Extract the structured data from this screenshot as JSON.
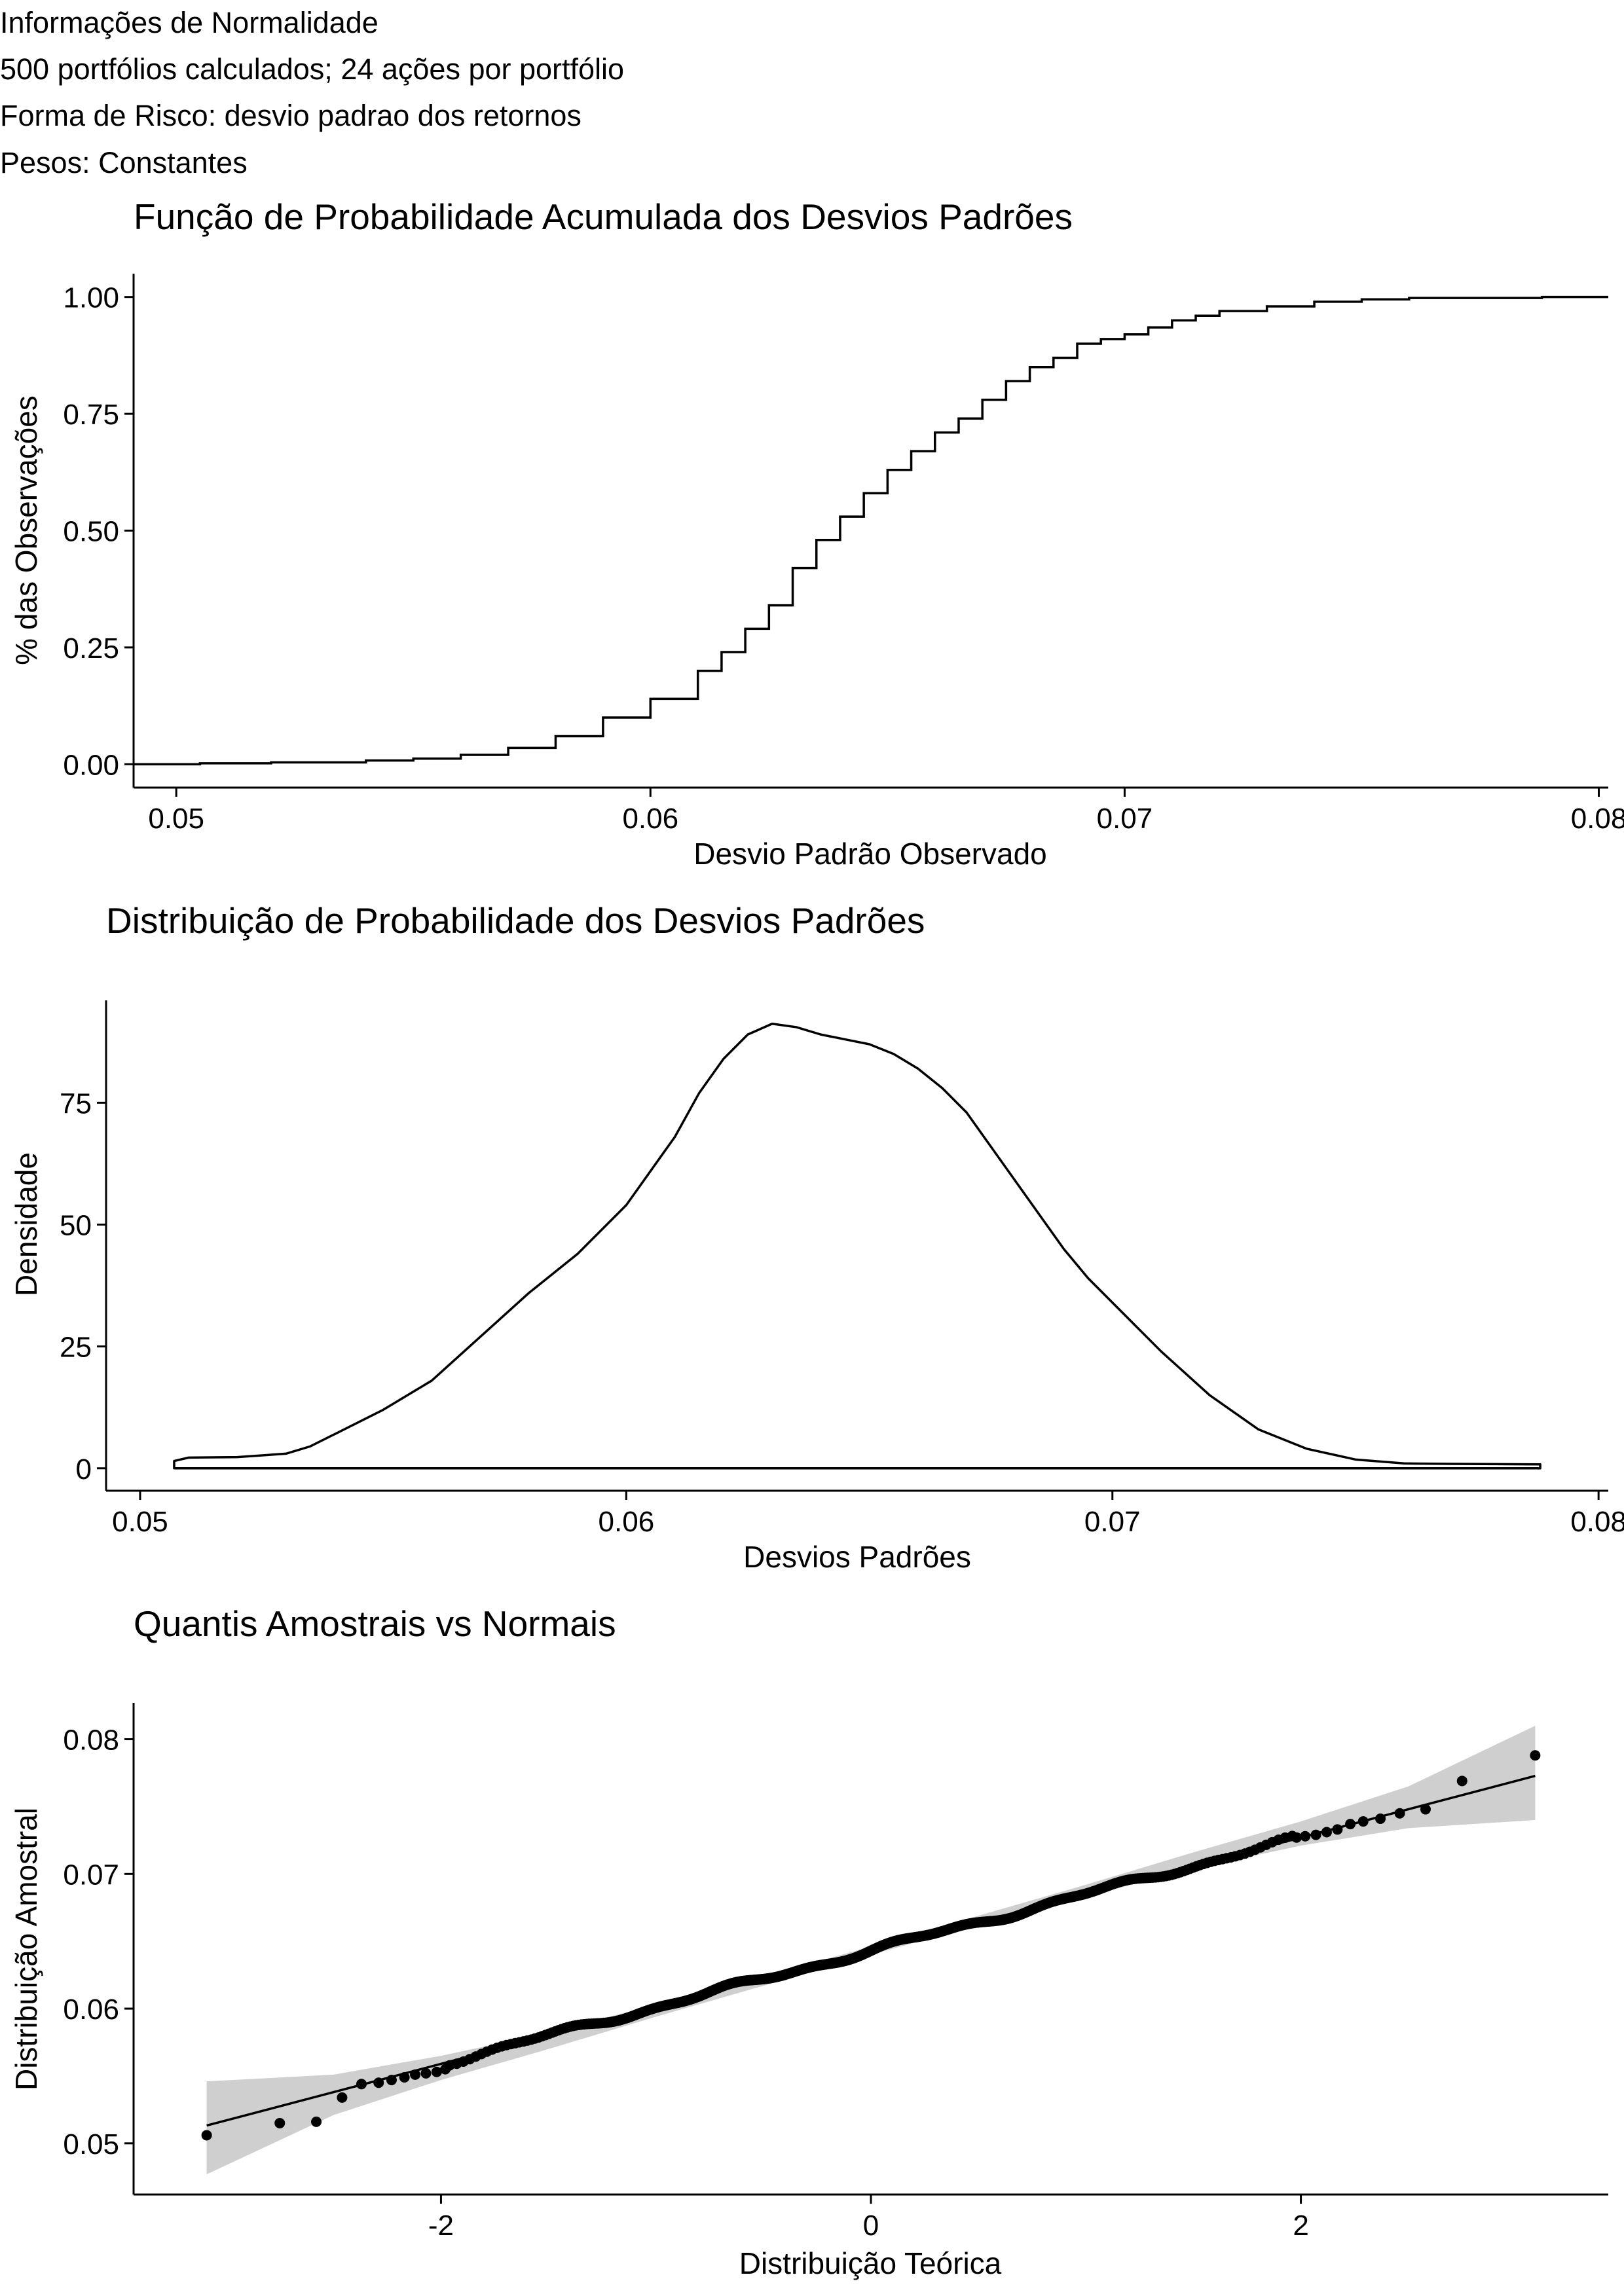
{
  "header": {
    "lines": [
      "Informações de Normalidade",
      "500 portfólios calculados; 24 ações por portfólio",
      "Forma de Risco: desvio padrao dos retornos",
      "Pesos: Constantes"
    ]
  },
  "chart_data": [
    {
      "type": "line",
      "subtype": "ecdf-step",
      "title": "Função de Probabilidade Acumulada dos Desvios Padrões",
      "xlabel": "Desvio Padrão Observado",
      "ylabel": "% das Observações",
      "xlim": [
        0.0491,
        0.0802
      ],
      "ylim": [
        -0.05,
        1.05
      ],
      "xticks": [
        0.05,
        0.06,
        0.07,
        0.08
      ],
      "xtick_labels": [
        "0.05",
        "0.06",
        "0.07",
        "0.08"
      ],
      "yticks": [
        0.0,
        0.25,
        0.5,
        0.75,
        1.0
      ],
      "ytick_labels": [
        "0.00",
        "0.25",
        "0.50",
        "0.75",
        "1.00"
      ],
      "points": [
        [
          0.0491,
          0.0
        ],
        [
          0.0505,
          0.002
        ],
        [
          0.052,
          0.004
        ],
        [
          0.054,
          0.008
        ],
        [
          0.055,
          0.012
        ],
        [
          0.056,
          0.02
        ],
        [
          0.057,
          0.035
        ],
        [
          0.058,
          0.06
        ],
        [
          0.059,
          0.1
        ],
        [
          0.06,
          0.14
        ],
        [
          0.061,
          0.2
        ],
        [
          0.0615,
          0.24
        ],
        [
          0.062,
          0.29
        ],
        [
          0.0625,
          0.34
        ],
        [
          0.063,
          0.42
        ],
        [
          0.0635,
          0.48
        ],
        [
          0.064,
          0.53
        ],
        [
          0.0645,
          0.58
        ],
        [
          0.065,
          0.63
        ],
        [
          0.0655,
          0.67
        ],
        [
          0.066,
          0.71
        ],
        [
          0.0665,
          0.74
        ],
        [
          0.067,
          0.78
        ],
        [
          0.0675,
          0.82
        ],
        [
          0.068,
          0.85
        ],
        [
          0.0685,
          0.87
        ],
        [
          0.069,
          0.9
        ],
        [
          0.0695,
          0.91
        ],
        [
          0.07,
          0.92
        ],
        [
          0.0705,
          0.935
        ],
        [
          0.071,
          0.95
        ],
        [
          0.0715,
          0.96
        ],
        [
          0.072,
          0.97
        ],
        [
          0.073,
          0.98
        ],
        [
          0.074,
          0.99
        ],
        [
          0.075,
          0.995
        ],
        [
          0.076,
          0.998
        ],
        [
          0.0788,
          1.0
        ],
        [
          0.0802,
          1.0
        ]
      ],
      "grid": false
    },
    {
      "type": "area",
      "subtype": "density",
      "title": "Distribuição de Probabilidade dos Desvios Padrões",
      "xlabel": "Desvios Padrões",
      "ylabel": "Densidade",
      "xlim": [
        0.0493,
        0.0802
      ],
      "ylim": [
        -4.6,
        96
      ],
      "xticks": [
        0.05,
        0.06,
        0.07,
        0.08
      ],
      "xtick_labels": [
        "0.05",
        "0.06",
        "0.07",
        "0.08"
      ],
      "yticks": [
        0,
        25,
        50,
        75
      ],
      "ytick_labels": [
        "0",
        "25",
        "50",
        "75"
      ],
      "x": [
        0.0507,
        0.051,
        0.052,
        0.053,
        0.0535,
        0.054,
        0.055,
        0.056,
        0.057,
        0.058,
        0.059,
        0.06,
        0.0605,
        0.061,
        0.0615,
        0.062,
        0.0625,
        0.063,
        0.0635,
        0.064,
        0.0645,
        0.065,
        0.0655,
        0.066,
        0.0665,
        0.067,
        0.0675,
        0.068,
        0.0685,
        0.069,
        0.0695,
        0.07,
        0.0705,
        0.071,
        0.072,
        0.073,
        0.074,
        0.075,
        0.076,
        0.077,
        0.0788
      ],
      "y": [
        1.5,
        2.2,
        2.3,
        3.0,
        4.5,
        7.0,
        12.0,
        18.0,
        27.0,
        36.0,
        44.0,
        54.0,
        61.0,
        68.0,
        77.0,
        84.0,
        89.0,
        91.2,
        90.5,
        89.0,
        88.0,
        87.0,
        85.0,
        82.0,
        78.0,
        73.0,
        66.0,
        59.0,
        52.0,
        45.0,
        39.0,
        34.0,
        29.0,
        24.0,
        15.0,
        8.0,
        4.0,
        1.8,
        1.0,
        0.9,
        0.8
      ],
      "grid": false
    },
    {
      "type": "scatter",
      "subtype": "qq-plot",
      "title": "Quantis Amostrais vs Normais",
      "xlabel": "Distribuição Teórica",
      "ylabel": "Distribuição Amostral",
      "xlim": [
        -3.43,
        3.43
      ],
      "ylim": [
        0.0462,
        0.0827
      ],
      "xticks": [
        -2,
        0,
        2
      ],
      "xtick_labels": [
        "-2",
        "0",
        "2"
      ],
      "yticks": [
        0.05,
        0.06,
        0.07,
        0.08
      ],
      "ytick_labels": [
        "0.05",
        "0.06",
        "0.07",
        "0.08"
      ],
      "reference_line": {
        "intercept": 0.0643,
        "slope": 0.0042,
        "x_range": [
          -3.09,
          3.09
        ]
      },
      "confidence_band": {
        "x": [
          -3.09,
          -2.5,
          -2,
          -1.5,
          -1,
          -0.5,
          0,
          0.5,
          1,
          1.5,
          2,
          2.5,
          3.09
        ],
        "lower": [
          0.0477,
          0.0521,
          0.0547,
          0.057,
          0.0594,
          0.0617,
          0.064,
          0.0662,
          0.0683,
          0.0704,
          0.0721,
          0.0734,
          0.074
        ],
        "upper": [
          0.0546,
          0.0551,
          0.0565,
          0.0582,
          0.0603,
          0.0624,
          0.0646,
          0.0669,
          0.0692,
          0.0716,
          0.0739,
          0.0765,
          0.081
        ]
      },
      "tail_points": [
        [
          -3.09,
          0.0506
        ],
        [
          -2.75,
          0.0515
        ],
        [
          -2.58,
          0.0516
        ],
        [
          -2.46,
          0.0534
        ],
        [
          -2.37,
          0.0544
        ],
        [
          -2.29,
          0.0545
        ],
        [
          -2.23,
          0.0547
        ],
        [
          -2.17,
          0.0549
        ],
        [
          -2.12,
          0.0551
        ],
        [
          -2.07,
          0.0552
        ],
        [
          -2.02,
          0.0553
        ],
        [
          -1.98,
          0.0555
        ],
        [
          1.98,
          0.0727
        ],
        [
          2.02,
          0.0728
        ],
        [
          2.07,
          0.0729
        ],
        [
          2.12,
          0.0731
        ],
        [
          2.17,
          0.0733
        ],
        [
          2.23,
          0.0737
        ],
        [
          2.29,
          0.0739
        ],
        [
          2.37,
          0.0741
        ],
        [
          2.46,
          0.0745
        ],
        [
          2.58,
          0.0748
        ],
        [
          2.75,
          0.0769
        ],
        [
          3.09,
          0.0788
        ]
      ],
      "grid": false
    }
  ]
}
